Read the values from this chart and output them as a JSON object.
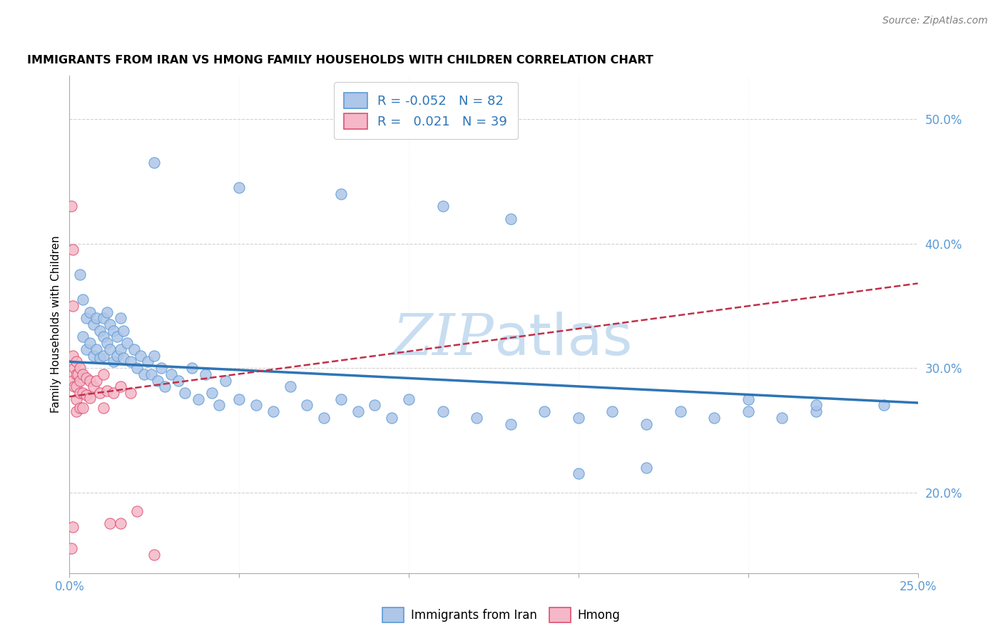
{
  "title": "IMMIGRANTS FROM IRAN VS HMONG FAMILY HOUSEHOLDS WITH CHILDREN CORRELATION CHART",
  "source": "Source: ZipAtlas.com",
  "ylabel": "Family Households with Children",
  "yticks": [
    "20.0%",
    "30.0%",
    "40.0%",
    "50.0%"
  ],
  "ytick_vals": [
    0.2,
    0.3,
    0.4,
    0.5
  ],
  "xlim": [
    0.0,
    0.25
  ],
  "ylim": [
    0.135,
    0.535
  ],
  "legend_iran_r": "-0.052",
  "legend_iran_n": "82",
  "legend_hmong_r": "0.021",
  "legend_hmong_n": "39",
  "iran_color": "#aec6e8",
  "iran_edge_color": "#5b9bd5",
  "iran_line_color": "#2e75b6",
  "hmong_color": "#f4b8c8",
  "hmong_edge_color": "#e05070",
  "hmong_line_color": "#c0304a",
  "watermark_color": "#c8ddf0",
  "iran_trend_x": [
    0.0,
    0.25
  ],
  "iran_trend_y": [
    0.305,
    0.272
  ],
  "hmong_trend_x": [
    0.0,
    0.25
  ],
  "hmong_trend_y": [
    0.277,
    0.368
  ],
  "iran_x": [
    0.003,
    0.004,
    0.004,
    0.005,
    0.005,
    0.006,
    0.006,
    0.007,
    0.007,
    0.008,
    0.008,
    0.009,
    0.009,
    0.01,
    0.01,
    0.01,
    0.011,
    0.011,
    0.012,
    0.012,
    0.013,
    0.013,
    0.014,
    0.014,
    0.015,
    0.015,
    0.016,
    0.016,
    0.017,
    0.018,
    0.019,
    0.02,
    0.021,
    0.022,
    0.023,
    0.024,
    0.025,
    0.026,
    0.027,
    0.028,
    0.03,
    0.032,
    0.034,
    0.036,
    0.038,
    0.04,
    0.042,
    0.044,
    0.046,
    0.05,
    0.055,
    0.06,
    0.065,
    0.07,
    0.075,
    0.08,
    0.085,
    0.09,
    0.095,
    0.1,
    0.11,
    0.12,
    0.13,
    0.14,
    0.15,
    0.16,
    0.17,
    0.18,
    0.19,
    0.2,
    0.21,
    0.22,
    0.025,
    0.05,
    0.08,
    0.11,
    0.13,
    0.15,
    0.17,
    0.2,
    0.22,
    0.24
  ],
  "iran_y": [
    0.375,
    0.355,
    0.325,
    0.34,
    0.315,
    0.345,
    0.32,
    0.335,
    0.31,
    0.34,
    0.315,
    0.33,
    0.308,
    0.325,
    0.34,
    0.31,
    0.345,
    0.32,
    0.335,
    0.315,
    0.33,
    0.305,
    0.325,
    0.31,
    0.34,
    0.315,
    0.33,
    0.308,
    0.32,
    0.305,
    0.315,
    0.3,
    0.31,
    0.295,
    0.305,
    0.295,
    0.31,
    0.29,
    0.3,
    0.285,
    0.295,
    0.29,
    0.28,
    0.3,
    0.275,
    0.295,
    0.28,
    0.27,
    0.29,
    0.275,
    0.27,
    0.265,
    0.285,
    0.27,
    0.26,
    0.275,
    0.265,
    0.27,
    0.26,
    0.275,
    0.265,
    0.26,
    0.255,
    0.265,
    0.26,
    0.265,
    0.255,
    0.265,
    0.26,
    0.265,
    0.26,
    0.265,
    0.465,
    0.445,
    0.44,
    0.43,
    0.42,
    0.215,
    0.22,
    0.275,
    0.27,
    0.27
  ],
  "hmong_x": [
    0.0005,
    0.0005,
    0.001,
    0.001,
    0.001,
    0.001,
    0.001,
    0.0015,
    0.0015,
    0.002,
    0.002,
    0.002,
    0.002,
    0.002,
    0.0025,
    0.003,
    0.003,
    0.003,
    0.003,
    0.004,
    0.004,
    0.004,
    0.005,
    0.005,
    0.006,
    0.006,
    0.007,
    0.008,
    0.009,
    0.01,
    0.01,
    0.011,
    0.012,
    0.013,
    0.015,
    0.015,
    0.018,
    0.02,
    0.025
  ],
  "hmong_y": [
    0.43,
    0.155,
    0.395,
    0.35,
    0.31,
    0.29,
    0.172,
    0.3,
    0.285,
    0.305,
    0.295,
    0.285,
    0.275,
    0.265,
    0.295,
    0.3,
    0.29,
    0.28,
    0.268,
    0.295,
    0.28,
    0.268,
    0.292,
    0.278,
    0.29,
    0.276,
    0.285,
    0.29,
    0.28,
    0.295,
    0.268,
    0.282,
    0.175,
    0.28,
    0.285,
    0.175,
    0.28,
    0.185,
    0.15
  ]
}
